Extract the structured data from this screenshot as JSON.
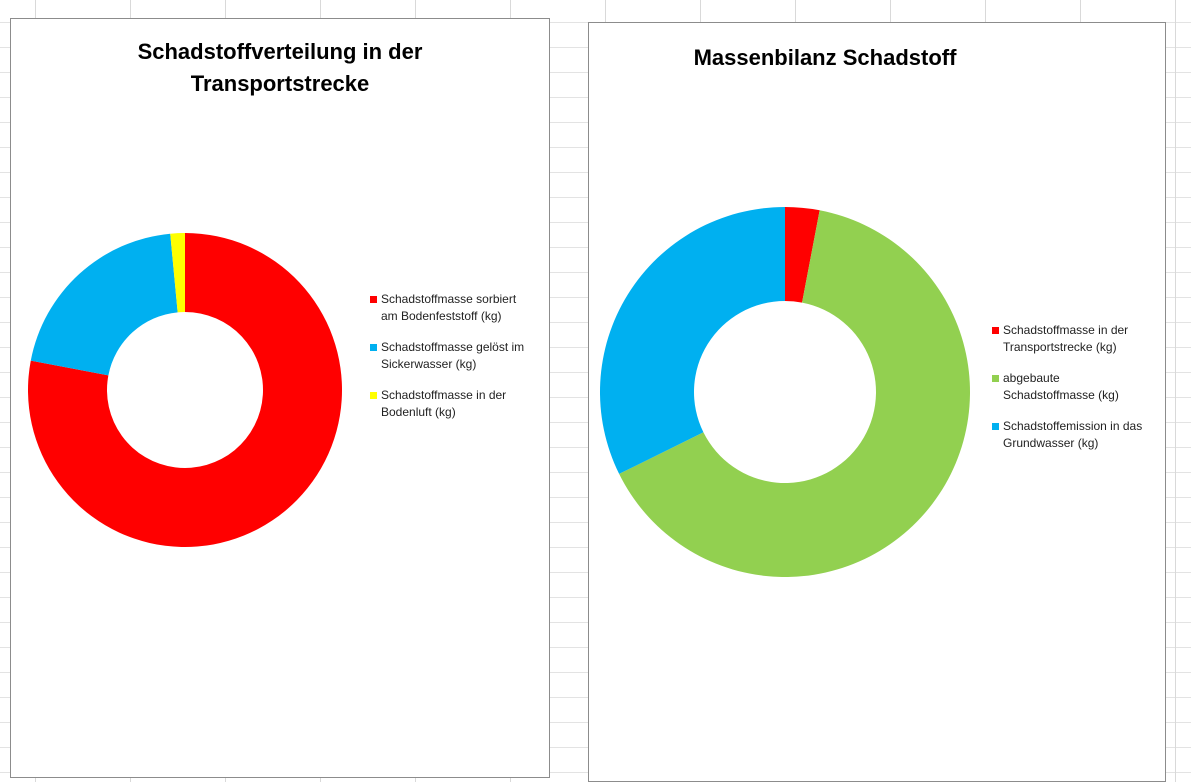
{
  "chart_data": [
    {
      "type": "donut",
      "title": "Schadstoffverteilung in der Transportstrecke",
      "categories": [
        "Schadstoffmasse sorbiert am Bodenfeststoff (kg)",
        "Schadstoffmasse gelöst im Sickerwasser (kg)",
        "Schadstoffmasse in der Bodenluft (kg)"
      ],
      "values": [
        78,
        20.5,
        1.5
      ],
      "colors": [
        "#ff0000",
        "#00b0f0",
        "#ffff00"
      ]
    },
    {
      "type": "donut",
      "title": "Massenbilanz Schadstoff",
      "categories": [
        "Schadstoffmasse in der Transportstrecke (kg)",
        "abgebaute Schadstoffmasse (kg)",
        "Schadstoffemission in das Grundwasser (kg)"
      ],
      "values": [
        3,
        64.7,
        32.3
      ],
      "colors": [
        "#ff0000",
        "#92d050",
        "#00b0f0"
      ]
    }
  ]
}
